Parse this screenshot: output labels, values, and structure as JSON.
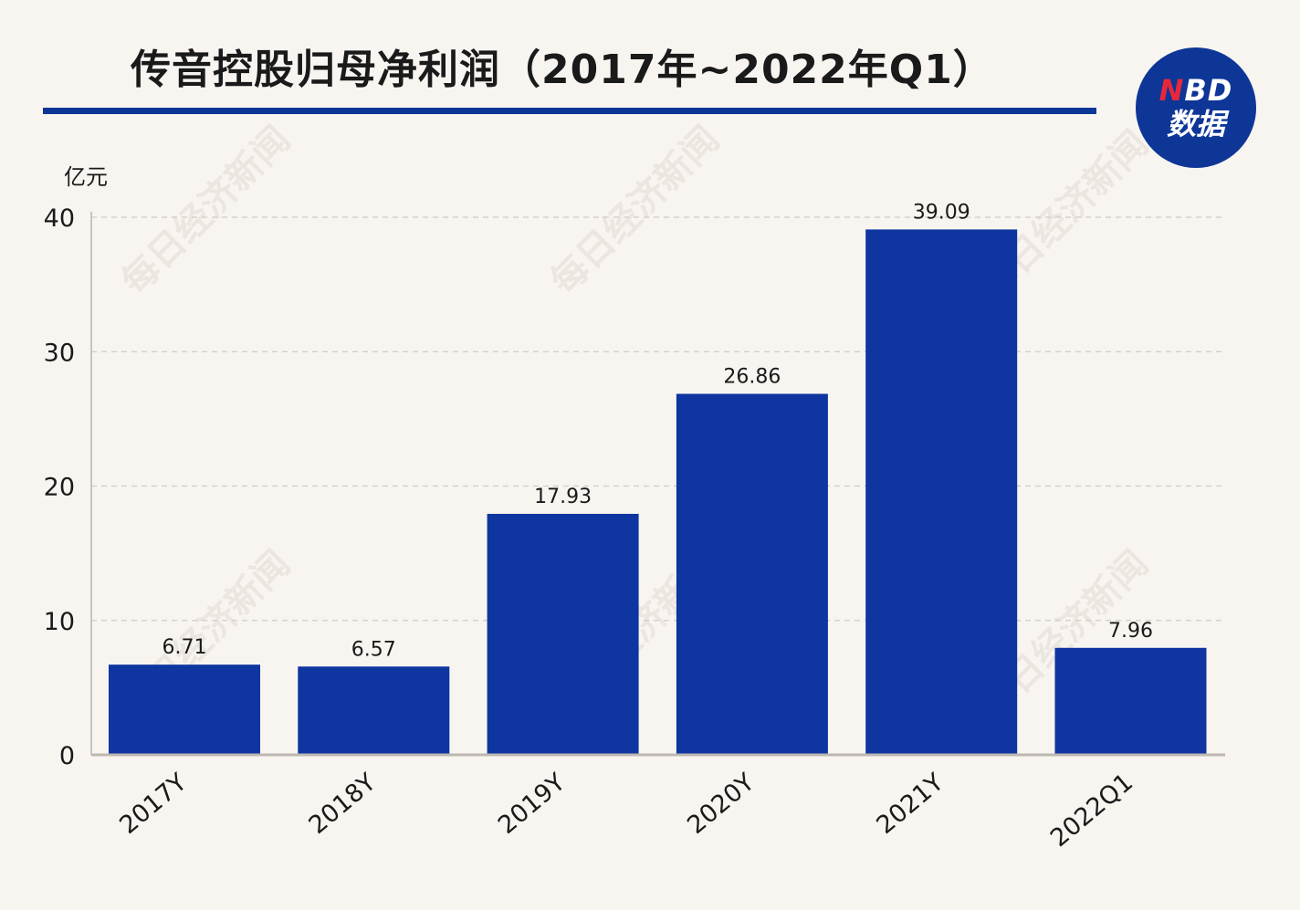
{
  "header": {
    "title": "传音控股归母净利润（2017年~2022年Q1）"
  },
  "logo": {
    "letter_n": "N",
    "letters_bd": "BD",
    "line2": "数据"
  },
  "watermark": "每日经济新闻",
  "colors": {
    "bar": "#0e35a0",
    "title_rule": "#0d3697",
    "background": "#f8f5f1",
    "logo_red": "#e8283a"
  },
  "chart_data": {
    "type": "bar",
    "title": "传音控股归母净利润（2017年~2022年Q1）",
    "ylabel": "亿元",
    "xlabel": "",
    "categories": [
      "2017Y",
      "2018Y",
      "2019Y",
      "2020Y",
      "2021Y",
      "2022Q1"
    ],
    "values": [
      6.71,
      6.57,
      17.93,
      26.86,
      39.09,
      7.96
    ],
    "value_labels": [
      "6.71",
      "6.57",
      "17.93",
      "26.86",
      "39.09",
      "7.96"
    ],
    "ylim": [
      0,
      40
    ],
    "yticks": [
      "0",
      "10",
      "20",
      "30",
      "40"
    ],
    "grid": true,
    "legend": "none"
  }
}
